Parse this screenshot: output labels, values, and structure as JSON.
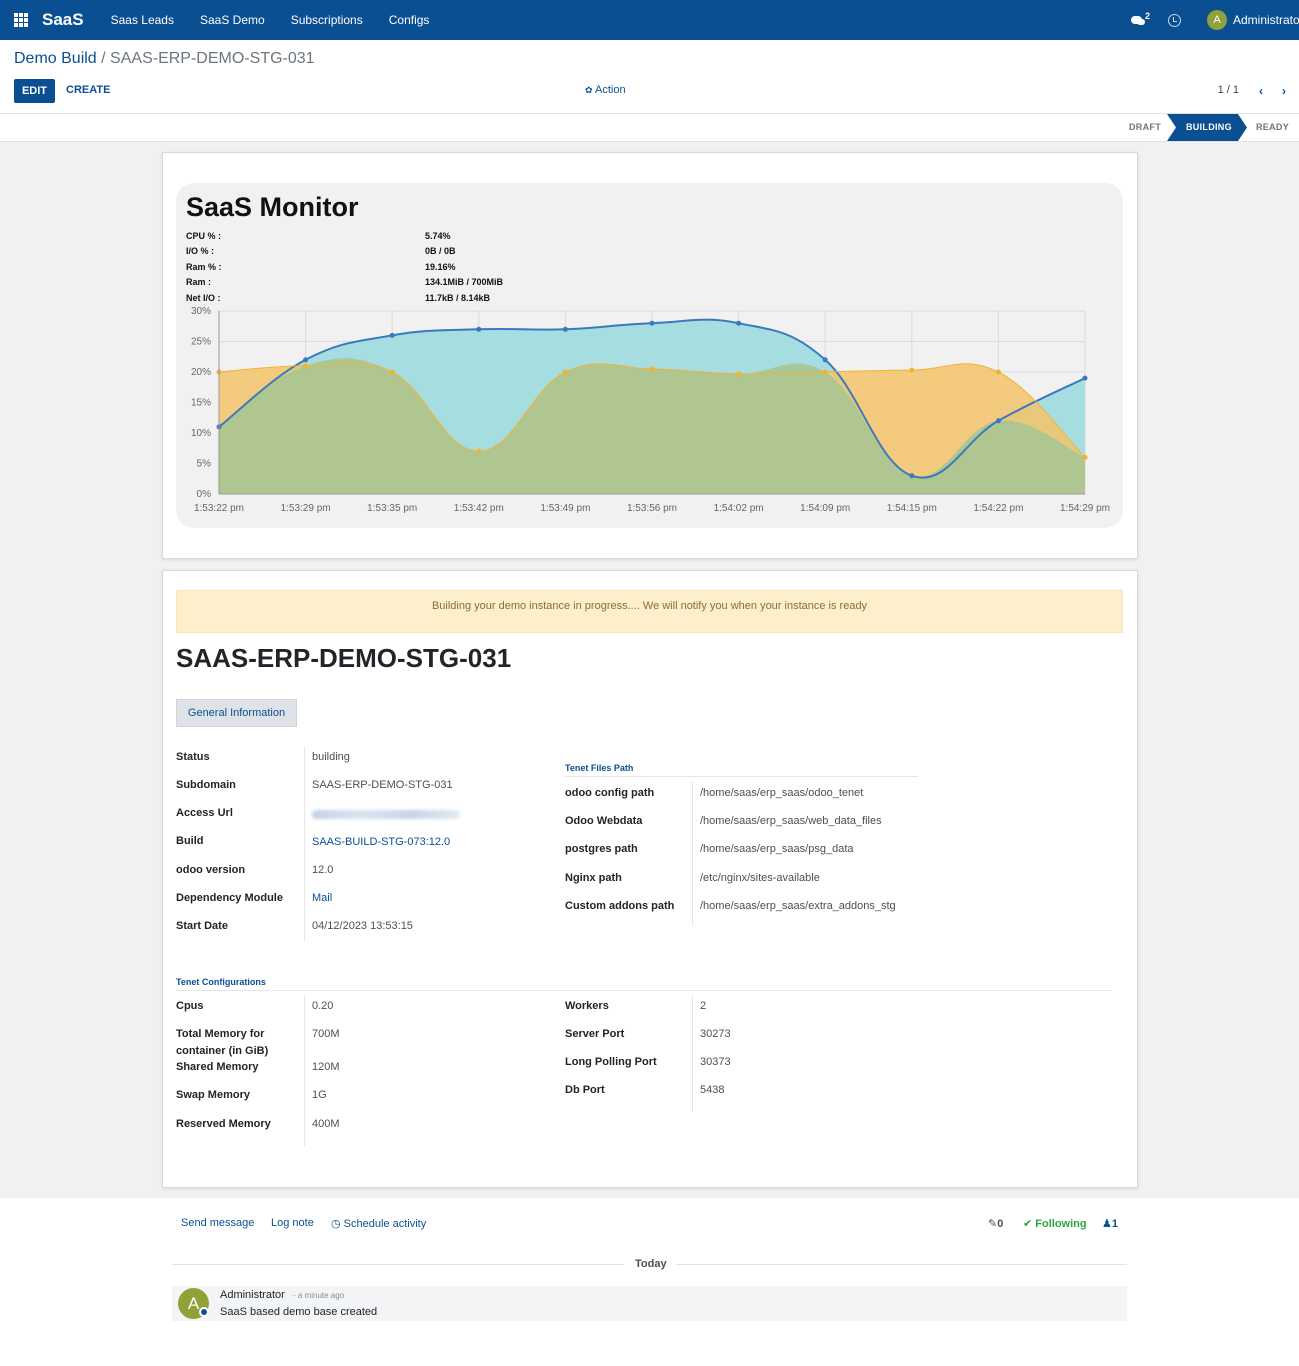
{
  "navbar": {
    "brand": "SaaS",
    "menus": [
      "Saas Leads",
      "SaaS Demo",
      "Subscriptions",
      "Configs"
    ],
    "message_count": "2",
    "avatar_letter": "A",
    "user": "Administrator"
  },
  "breadcrumb": {
    "parent": "Demo Build",
    "separator": " / ",
    "current": "SAAS-ERP-DEMO-STG-031"
  },
  "buttons": {
    "edit": "EDIT",
    "create": "CREATE",
    "action": "Action"
  },
  "pager": {
    "value": "1 / 1"
  },
  "status_stages": [
    "DRAFT",
    "BUILDING",
    "READY"
  ],
  "active_stage": "BUILDING",
  "monitor": {
    "title": "SaaS Monitor",
    "metrics": [
      {
        "label": "CPU % :",
        "value": "5.74%"
      },
      {
        "label": "I/O % :",
        "value": "0B / 0B"
      },
      {
        "label": "Ram % :",
        "value": "19.16%"
      },
      {
        "label": "Ram :",
        "value": "134.1MiB / 700MiB"
      },
      {
        "label": "Net I/O :",
        "value": "11.7kB / 8.14kB"
      }
    ]
  },
  "chart_data": {
    "type": "area",
    "x": [
      "1:53:22 pm",
      "1:53:29 pm",
      "1:53:35 pm",
      "1:53:42 pm",
      "1:53:49 pm",
      "1:53:56 pm",
      "1:54:02 pm",
      "1:54:09 pm",
      "1:54:15 pm",
      "1:54:22 pm",
      "1:54:29 pm"
    ],
    "yticks": [
      "0%",
      "5%",
      "10%",
      "15%",
      "20%",
      "25%",
      "30%"
    ],
    "ylim": [
      0,
      30
    ],
    "grid": true,
    "series": [
      {
        "color": "#3a79c0",
        "fill": "#a6dde1",
        "values": [
          11,
          22,
          26,
          27,
          27,
          28,
          28,
          22,
          3,
          12,
          19
        ]
      },
      {
        "color": "#f0b434",
        "fill": "#f5c46a",
        "values": [
          20,
          21,
          20,
          7,
          20,
          20.5,
          19.7,
          20,
          20.3,
          20,
          6
        ]
      }
    ]
  },
  "alert": "Building your demo instance in progress.... We will notify you when your instance is ready",
  "record_title": "SAAS-ERP-DEMO-STG-031",
  "tab": "General Information",
  "general_fields": [
    {
      "label": "Status",
      "value": "building"
    },
    {
      "label": "Subdomain",
      "value": "SAAS-ERP-DEMO-STG-031"
    },
    {
      "label": "Access Url",
      "value": ""
    },
    {
      "label": "Build",
      "value": "SAAS-BUILD-STG-073:12.0"
    },
    {
      "label": "odoo version",
      "value": "12.0"
    },
    {
      "label": "Dependency Module",
      "value": "Mail"
    },
    {
      "label": "Start Date",
      "value": "04/12/2023 13:53:15"
    }
  ],
  "files_group": {
    "title": "Tenet Files Path",
    "fields": [
      {
        "label": "odoo config path",
        "value": "/home/saas/erp_saas/odoo_tenet"
      },
      {
        "label": "Odoo Webdata",
        "value": "/home/saas/erp_saas/web_data_files"
      },
      {
        "label": "postgres path",
        "value": "/home/saas/erp_saas/psg_data"
      },
      {
        "label": "Nginx path",
        "value": "/etc/nginx/sites-available"
      },
      {
        "label": "Custom addons path",
        "value": "/home/saas/erp_saas/extra_addons_stg"
      }
    ]
  },
  "config_group": {
    "title": "Tenet Configurations",
    "left": [
      {
        "label": "Cpus",
        "value": "0.20"
      },
      {
        "label": "Total Memory for container (in GiB)",
        "value": "700M"
      },
      {
        "label": "Shared Memory",
        "value": "120M"
      },
      {
        "label": "Swap Memory",
        "value": "1G"
      },
      {
        "label": "Reserved Memory",
        "value": "400M"
      }
    ],
    "right": [
      {
        "label": "Workers",
        "value": "2"
      },
      {
        "label": "Server Port",
        "value": "30273"
      },
      {
        "label": "Long Polling Port",
        "value": "30373"
      },
      {
        "label": "Db Port",
        "value": "5438"
      }
    ]
  },
  "chatter": {
    "send_message": "Send message",
    "log_note": "Log note",
    "schedule_activity": "Schedule activity",
    "attachments": "0",
    "following": "Following",
    "followers": "1",
    "today": "Today",
    "message": {
      "avatar": "A",
      "author": "Administrator",
      "time": "- a minute ago",
      "body": "SaaS based demo base created"
    }
  }
}
